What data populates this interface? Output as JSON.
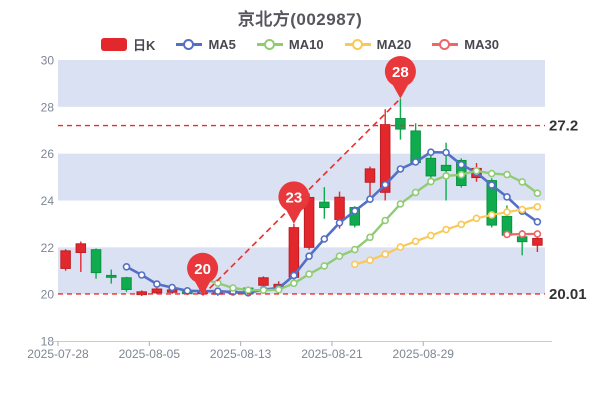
{
  "title": "京北方(002987)",
  "legend": {
    "items": [
      {
        "id": "daily-k",
        "label": "日K",
        "color": "#e2282d",
        "shape": "rect"
      },
      {
        "id": "ma5",
        "label": "MA5",
        "color": "#5470c6",
        "shape": "line-dot"
      },
      {
        "id": "ma10",
        "label": "MA10",
        "color": "#91cc75",
        "shape": "line-dot"
      },
      {
        "id": "ma20",
        "label": "MA20",
        "color": "#fac858",
        "shape": "line-dot"
      },
      {
        "id": "ma30",
        "label": "MA30",
        "color": "#ee6666",
        "shape": "line-dot"
      }
    ]
  },
  "chart_data": {
    "type": "candlestick",
    "title": "京北方(002987)",
    "ylim": [
      18,
      30
    ],
    "y_ticks": [
      30,
      28,
      26,
      24,
      22,
      20,
      18
    ],
    "x_tick_labels": [
      "2025-07-28",
      "2025-08-05",
      "2025-08-13",
      "2025-08-21",
      "2025-08-29"
    ],
    "x_tick_indices": [
      0,
      6,
      12,
      18,
      24
    ],
    "legend_position": "top",
    "grid_stripes": true,
    "stripe_color": "#d9e1f2",
    "up_color": "#e2282d",
    "up_border_color": "#bf1d23",
    "down_color": "#10ab4f",
    "down_border_color": "#0a9440",
    "pin_color": "#e8383c",
    "dashed_line_color": "#ee2b2b",
    "axis_line_color": "#c9ccd4",
    "ma_series": [
      {
        "name": "MA5",
        "period": 5,
        "color": "#5470c6",
        "width": 2.6
      },
      {
        "name": "MA10",
        "period": 10,
        "color": "#91cc75",
        "width": 2.4
      },
      {
        "name": "MA20",
        "period": 20,
        "color": "#fac858",
        "width": 2.2
      },
      {
        "name": "MA30",
        "period": 30,
        "color": "#ee6666",
        "width": 2.2
      }
    ],
    "candles": [
      {
        "date": "2025-07-28",
        "open": 21.1,
        "close": 21.85,
        "low": 21.0,
        "high": 21.92
      },
      {
        "date": "2025-07-29",
        "open": 21.78,
        "close": 22.15,
        "low": 20.95,
        "high": 22.25
      },
      {
        "date": "2025-07-30",
        "open": 21.9,
        "close": 20.92,
        "low": 20.66,
        "high": 21.95
      },
      {
        "date": "2025-07-31",
        "open": 20.8,
        "close": 20.72,
        "low": 20.45,
        "high": 21.05
      },
      {
        "date": "2025-08-01",
        "open": 20.7,
        "close": 20.2,
        "low": 20.1,
        "high": 20.74
      },
      {
        "date": "2025-08-04",
        "open": 19.98,
        "close": 20.1,
        "low": 19.92,
        "high": 20.16
      },
      {
        "date": "2025-08-05",
        "open": 20.06,
        "close": 20.22,
        "low": 20.0,
        "high": 20.28
      },
      {
        "date": "2025-08-06",
        "open": 20.08,
        "close": 20.18,
        "low": 20.02,
        "high": 20.25
      },
      {
        "date": "2025-08-07",
        "open": 20.16,
        "close": 20.02,
        "low": 19.96,
        "high": 20.22
      },
      {
        "date": "2025-08-08",
        "open": 20.02,
        "close": 20.12,
        "low": 19.95,
        "high": 20.18
      },
      {
        "date": "2025-08-11",
        "open": 20.0,
        "close": 20.1,
        "low": 19.93,
        "high": 20.16
      },
      {
        "date": "2025-08-12",
        "open": 20.12,
        "close": 20.04,
        "low": 19.97,
        "high": 20.18
      },
      {
        "date": "2025-08-13",
        "open": 20.26,
        "close": 20.01,
        "low": 19.96,
        "high": 20.3
      },
      {
        "date": "2025-08-14",
        "open": 20.38,
        "close": 20.7,
        "low": 20.3,
        "high": 20.76
      },
      {
        "date": "2025-08-15",
        "open": 20.3,
        "close": 20.42,
        "low": 20.12,
        "high": 20.55
      },
      {
        "date": "2025-08-18",
        "open": 20.72,
        "close": 22.84,
        "low": 20.6,
        "high": 23.0
      },
      {
        "date": "2025-08-19",
        "open": 22.0,
        "close": 24.13,
        "low": 21.9,
        "high": 24.3
      },
      {
        "date": "2025-08-20",
        "open": 23.93,
        "close": 23.7,
        "low": 23.22,
        "high": 24.57
      },
      {
        "date": "2025-08-21",
        "open": 23.19,
        "close": 24.14,
        "low": 22.8,
        "high": 24.38
      },
      {
        "date": "2025-08-22",
        "open": 23.7,
        "close": 22.95,
        "low": 22.85,
        "high": 23.76
      },
      {
        "date": "2025-08-25",
        "open": 24.78,
        "close": 25.35,
        "low": 24.2,
        "high": 25.45
      },
      {
        "date": "2025-08-26",
        "open": 24.35,
        "close": 27.24,
        "low": 24.0,
        "high": 27.9
      },
      {
        "date": "2025-08-27",
        "open": 27.5,
        "close": 27.05,
        "low": 26.6,
        "high": 28.35
      },
      {
        "date": "2025-08-28",
        "open": 26.97,
        "close": 25.62,
        "low": 25.5,
        "high": 27.3
      },
      {
        "date": "2025-08-29",
        "open": 25.8,
        "close": 25.05,
        "low": 24.95,
        "high": 25.95
      },
      {
        "date": "2025-09-01",
        "open": 25.5,
        "close": 25.28,
        "low": 24.0,
        "high": 26.47
      },
      {
        "date": "2025-09-02",
        "open": 25.71,
        "close": 24.64,
        "low": 24.55,
        "high": 25.8
      },
      {
        "date": "2025-09-03",
        "open": 24.98,
        "close": 25.37,
        "low": 24.8,
        "high": 25.6
      },
      {
        "date": "2025-09-04",
        "open": 24.85,
        "close": 22.95,
        "low": 22.85,
        "high": 24.95
      },
      {
        "date": "2025-09-05",
        "open": 23.32,
        "close": 22.52,
        "low": 22.45,
        "high": 23.79
      },
      {
        "date": "2025-09-08",
        "open": 22.45,
        "close": 22.24,
        "low": 21.66,
        "high": 22.74
      },
      {
        "date": "2025-09-09",
        "open": 22.09,
        "close": 22.38,
        "low": 21.8,
        "high": 22.45
      }
    ],
    "markers": [
      {
        "label": "20",
        "index": 9,
        "value": 19.95,
        "anchor": "low"
      },
      {
        "label": "23",
        "index": 15,
        "value": 23.0,
        "anchor": "high"
      },
      {
        "label": "28",
        "index": 22,
        "value": 28.35,
        "anchor": "high"
      }
    ],
    "reference_lines": [
      {
        "label": "27.2",
        "value": 27.2
      },
      {
        "label": "20.01",
        "value": 20.01
      }
    ],
    "trend_line": {
      "from": {
        "index": 9,
        "value": 19.95
      },
      "to": {
        "index": 22,
        "value": 28.35
      }
    }
  }
}
